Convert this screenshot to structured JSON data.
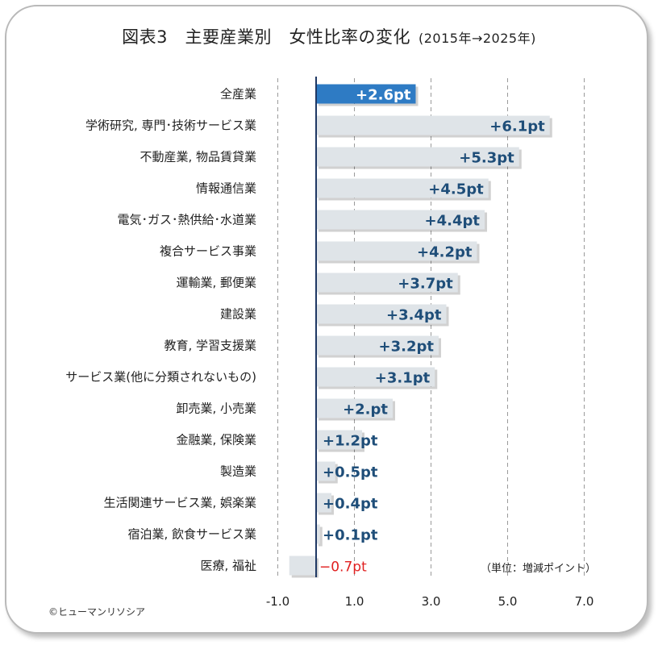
{
  "title": {
    "main": "図表3　主要産業別　女性比率の変化",
    "sub": "(2015年→2025年)"
  },
  "unit_note": "（単位：増減ポイント）",
  "credit": "©ヒューマンリソシア",
  "colors": {
    "highlight_bar": "#2e7bc4",
    "bar": "#dfe4e8",
    "label_positive": "#1f4e79",
    "label_negative": "#e02020",
    "zero_line": "#1f3864",
    "grid": "#9a9a9a"
  },
  "chart_data": {
    "type": "bar",
    "orientation": "horizontal",
    "categories": [
      "全産業",
      "学術研究, 専門･技術サービス業",
      "不動産業, 物品賃貸業",
      "情報通信業",
      "電気･ガス･熱供給･水道業",
      "複合サービス事業",
      "運輸業, 郵便業",
      "建設業",
      "教育, 学習支援業",
      "サービス業(他に分類されないもの)",
      "卸売業, 小売業",
      "金融業, 保険業",
      "製造業",
      "生活関連サービス業, 娯楽業",
      "宿泊業, 飲食サービス業",
      "医療, 福祉"
    ],
    "values": [
      2.6,
      6.1,
      5.3,
      4.5,
      4.4,
      4.2,
      3.7,
      3.4,
      3.2,
      3.1,
      2.0,
      1.2,
      0.5,
      0.4,
      0.1,
      -0.7
    ],
    "value_labels": [
      "+2.6pt",
      "+6.1pt",
      "+5.3pt",
      "+4.5pt",
      "+4.4pt",
      "+4.2pt",
      "+3.7pt",
      "+3.4pt",
      "+3.2pt",
      "+3.1pt",
      "+2.pt",
      "+1.2pt",
      "+0.5pt",
      "+0.4pt",
      "+0.1pt",
      "−0.7pt"
    ],
    "highlight_index": 0,
    "xticks": [
      -1.0,
      1.0,
      3.0,
      5.0,
      7.0
    ],
    "xtick_labels": [
      "-1.0",
      "1.0",
      "3.0",
      "5.0",
      "7.0"
    ],
    "xlim": [
      -1.0,
      7.0
    ],
    "grid": "vertical dashed",
    "legend": "none"
  }
}
